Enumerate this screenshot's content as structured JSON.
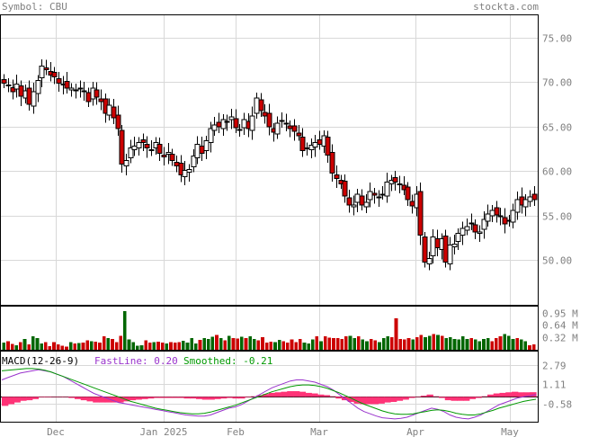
{
  "header": {
    "symbol_label": "Symbol: CBU",
    "source": "stockta.com"
  },
  "colors": {
    "up_candle": "#ffffff",
    "down_candle": "#cc0000",
    "volume_up": "#006600",
    "volume_down": "#cc0000",
    "macd_fast": "#9933cc",
    "macd_smoothed": "#009900",
    "macd_histogram": "#ff3377",
    "text_gray": "#808080"
  },
  "chart_data": [
    {
      "type": "candlestick",
      "panel": "price",
      "y_ticks": [
        "75.00",
        "70.00",
        "65.00",
        "60.00",
        "55.00",
        "50.00"
      ],
      "ylim": [
        45.0,
        77.5
      ],
      "x_ticks": [
        "Dec",
        "Jan 2025",
        "Feb",
        "Mar",
        "Apr",
        "May"
      ],
      "grid": true,
      "close": [
        69.9,
        69.6,
        68.9,
        69.8,
        68.4,
        69.0,
        67.5,
        68.9,
        70.2,
        71.8,
        71.4,
        70.8,
        70.6,
        69.9,
        69.8,
        69.3,
        69.3,
        69.0,
        69.2,
        69.0,
        67.8,
        69.3,
        68.3,
        67.8,
        66.5,
        67.4,
        66.0,
        64.8,
        60.8,
        61.2,
        62.6,
        62.8,
        63.2,
        63.2,
        62.6,
        62.3,
        63.2,
        62.0,
        61.6,
        62.1,
        61.2,
        60.6,
        59.6,
        60.1,
        60.2,
        61.7,
        63.0,
        62.0,
        63.4,
        64.8,
        65.2,
        65.0,
        65.8,
        65.5,
        66.1,
        64.9,
        64.6,
        65.8,
        64.8,
        66.2,
        68.2,
        66.8,
        66.2,
        65.0,
        64.4,
        65.4,
        65.6,
        65.3,
        64.8,
        64.5,
        64.0,
        62.3,
        62.6,
        62.9,
        63.2,
        63.0,
        64.0,
        61.8,
        59.8,
        59.2,
        58.6,
        57.2,
        56.2,
        56.2,
        57.4,
        56.2,
        56.5,
        57.7,
        57.3,
        57.1,
        57.4,
        58.8,
        59.0,
        58.8,
        58.6,
        57.9,
        56.8,
        56.1,
        57.4,
        52.8,
        49.8,
        50.2,
        52.6,
        51.4,
        52.4,
        49.8,
        51.7,
        51.8,
        53.0,
        53.6,
        53.8,
        54.2,
        53.2,
        53.2,
        54.6,
        55.2,
        55.6,
        55.1,
        55.0,
        54.1,
        54.5,
        55.6,
        56.8,
        56.2,
        56.8,
        57.1,
        56.8
      ]
    },
    {
      "type": "bar",
      "panel": "volume",
      "y_ticks": [
        "0.95 M",
        "0.64 M",
        "0.32 M"
      ],
      "ylim": [
        0,
        1.1
      ],
      "values": [
        0.18,
        0.22,
        0.15,
        0.12,
        0.2,
        0.27,
        0.14,
        0.34,
        0.3,
        0.16,
        0.2,
        0.09,
        0.2,
        0.14,
        0.1,
        0.08,
        0.19,
        0.16,
        0.17,
        0.18,
        0.24,
        0.22,
        0.21,
        0.18,
        0.34,
        0.3,
        0.28,
        0.2,
        0.36,
        0.99,
        0.26,
        0.19,
        0.1,
        0.12,
        0.24,
        0.18,
        0.2,
        0.21,
        0.18,
        0.16,
        0.19,
        0.18,
        0.19,
        0.23,
        0.18,
        0.3,
        0.16,
        0.25,
        0.3,
        0.28,
        0.33,
        0.38,
        0.3,
        0.24,
        0.35,
        0.3,
        0.29,
        0.33,
        0.3,
        0.34,
        0.28,
        0.24,
        0.32,
        0.18,
        0.21,
        0.2,
        0.25,
        0.22,
        0.18,
        0.26,
        0.2,
        0.28,
        0.18,
        0.16,
        0.26,
        0.34,
        0.22,
        0.34,
        0.31,
        0.3,
        0.3,
        0.28,
        0.34,
        0.36,
        0.3,
        0.34,
        0.26,
        0.22,
        0.28,
        0.24,
        0.2,
        0.3,
        0.34,
        0.32,
        0.8,
        0.28,
        0.26,
        0.3,
        0.26,
        0.32,
        0.38,
        0.32,
        0.36,
        0.4,
        0.38,
        0.36,
        0.3,
        0.32,
        0.28,
        0.26,
        0.34,
        0.28,
        0.3,
        0.26,
        0.22,
        0.28,
        0.3,
        0.22,
        0.3,
        0.34,
        0.4,
        0.36,
        0.28,
        0.3,
        0.26,
        0.22,
        0.12,
        0.14
      ]
    },
    {
      "type": "line",
      "panel": "macd",
      "title": "MACD(12-26-9)",
      "fast_label": "FastLine: 0.20",
      "smoothed_label": "Smoothed: -0.21",
      "y_ticks": [
        "2.79",
        "1.11",
        "-0.58"
      ],
      "ylim": [
        -2.2,
        4.0
      ],
      "series": [
        {
          "name": "FastLine",
          "values": [
            1.5,
            1.7,
            1.9,
            2.1,
            2.2,
            2.3,
            2.4,
            2.3,
            2.2,
            2.0,
            1.8,
            1.5,
            1.2,
            0.9,
            0.6,
            0.3,
            0.1,
            -0.1,
            -0.3,
            -0.5,
            -0.6,
            -0.7,
            -0.8,
            -0.9,
            -1.0,
            -1.1,
            -1.2,
            -1.3,
            -1.4,
            -1.5,
            -1.6,
            -1.65,
            -1.7,
            -1.7,
            -1.6,
            -1.4,
            -1.2,
            -1.0,
            -0.9,
            -0.7,
            -0.4,
            -0.1,
            0.2,
            0.5,
            0.8,
            1.0,
            1.2,
            1.4,
            1.5,
            1.5,
            1.4,
            1.3,
            1.1,
            0.9,
            0.6,
            0.2,
            -0.2,
            -0.6,
            -1.0,
            -1.3,
            -1.5,
            -1.7,
            -1.85,
            -1.9,
            -1.95,
            -1.9,
            -1.8,
            -1.6,
            -1.4,
            -1.2,
            -1.0,
            -1.1,
            -1.3,
            -1.6,
            -1.8,
            -1.9,
            -1.95,
            -1.8,
            -1.6,
            -1.3,
            -1.0,
            -0.7,
            -0.5,
            -0.3,
            -0.1,
            0.0,
            0.1,
            0.2
          ]
        },
        {
          "name": "Smoothed",
          "values": [
            2.3,
            2.35,
            2.4,
            2.45,
            2.5,
            2.5,
            2.45,
            2.35,
            2.2,
            2.0,
            1.8,
            1.6,
            1.4,
            1.2,
            1.0,
            0.8,
            0.6,
            0.4,
            0.2,
            0.0,
            -0.2,
            -0.4,
            -0.55,
            -0.7,
            -0.85,
            -1.0,
            -1.1,
            -1.2,
            -1.3,
            -1.4,
            -1.45,
            -1.5,
            -1.5,
            -1.45,
            -1.35,
            -1.2,
            -1.05,
            -0.9,
            -0.75,
            -0.55,
            -0.35,
            -0.15,
            0.05,
            0.25,
            0.45,
            0.6,
            0.75,
            0.9,
            1.0,
            1.05,
            1.05,
            1.0,
            0.9,
            0.75,
            0.55,
            0.35,
            0.1,
            -0.15,
            -0.4,
            -0.65,
            -0.85,
            -1.05,
            -1.25,
            -1.4,
            -1.5,
            -1.55,
            -1.55,
            -1.5,
            -1.4,
            -1.3,
            -1.2,
            -1.15,
            -1.2,
            -1.3,
            -1.45,
            -1.55,
            -1.6,
            -1.6,
            -1.5,
            -1.35,
            -1.2,
            -1.0,
            -0.85,
            -0.7,
            -0.55,
            -0.4,
            -0.3,
            -0.21
          ]
        },
        {
          "name": "Histogram",
          "values": [
            -0.8,
            -0.65,
            -0.5,
            -0.35,
            -0.3,
            -0.2,
            -0.05,
            -0.05,
            0.0,
            0.0,
            0.0,
            -0.1,
            -0.2,
            -0.3,
            -0.4,
            -0.5,
            -0.5,
            -0.5,
            -0.5,
            -0.5,
            -0.4,
            -0.3,
            -0.25,
            -0.2,
            -0.15,
            -0.1,
            -0.1,
            -0.1,
            -0.1,
            -0.1,
            -0.15,
            -0.15,
            -0.2,
            -0.25,
            -0.25,
            -0.2,
            -0.15,
            -0.1,
            -0.15,
            -0.15,
            -0.05,
            0.05,
            0.15,
            0.25,
            0.35,
            0.4,
            0.45,
            0.5,
            0.5,
            0.45,
            0.35,
            0.3,
            0.2,
            0.15,
            0.05,
            -0.15,
            -0.3,
            -0.45,
            -0.6,
            -0.65,
            -0.65,
            -0.65,
            -0.6,
            -0.5,
            -0.45,
            -0.35,
            -0.25,
            -0.1,
            0.0,
            0.1,
            0.2,
            0.05,
            -0.1,
            -0.3,
            -0.35,
            -0.35,
            -0.35,
            -0.2,
            -0.1,
            0.05,
            0.2,
            0.3,
            0.35,
            0.4,
            0.45,
            0.4,
            0.4,
            0.41
          ]
        }
      ]
    }
  ]
}
